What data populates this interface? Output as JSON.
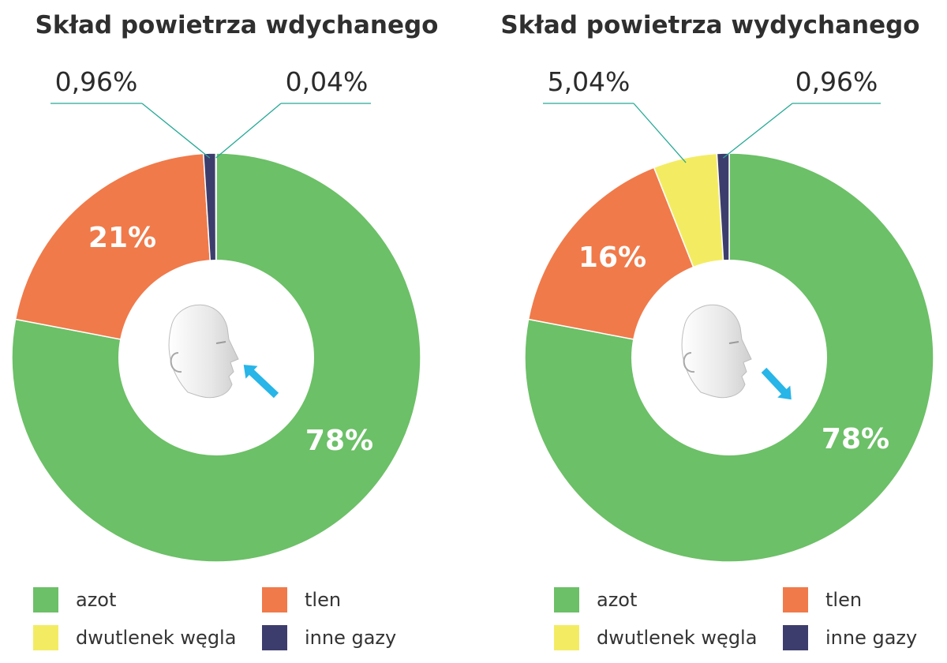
{
  "colors": {
    "azot": "#6cc067",
    "tlen": "#f07a4a",
    "dwutlenek": "#f3ec63",
    "inne": "#3d3d6d",
    "leader": "#25a996",
    "arrow": "#28b5e8",
    "label_white": "#ffffff",
    "label_dark": "#2b2b2b"
  },
  "legend_labels": {
    "azot": "azot",
    "tlen": "tlen",
    "dwutlenek": "dwutlenek węgla",
    "inne": "inne gazy"
  },
  "chart_data": [
    {
      "type": "pie",
      "title": "Skład powietrza wdychanego",
      "icon": "inhale-head-icon",
      "slices": [
        {
          "key": "azot",
          "name": "azot",
          "value": 78,
          "label": "78%"
        },
        {
          "key": "tlen",
          "name": "tlen",
          "value": 21,
          "label": "21%"
        },
        {
          "key": "inne",
          "name": "inne gazy",
          "value": 0.96,
          "label": "0,96%"
        },
        {
          "key": "dwutlenek",
          "name": "dwutlenek węgla",
          "value": 0.04,
          "label": "0,04%"
        }
      ]
    },
    {
      "type": "pie",
      "title": "Skład powietrza wydychanego",
      "icon": "exhale-head-icon",
      "slices": [
        {
          "key": "azot",
          "name": "azot",
          "value": 78,
          "label": "78%"
        },
        {
          "key": "tlen",
          "name": "tlen",
          "value": 16,
          "label": "16%"
        },
        {
          "key": "dwutlenek",
          "name": "dwutlenek węgla",
          "value": 5.04,
          "label": "5,04%"
        },
        {
          "key": "inne",
          "name": "inne gazy",
          "value": 0.96,
          "label": "0,96%"
        }
      ]
    }
  ]
}
